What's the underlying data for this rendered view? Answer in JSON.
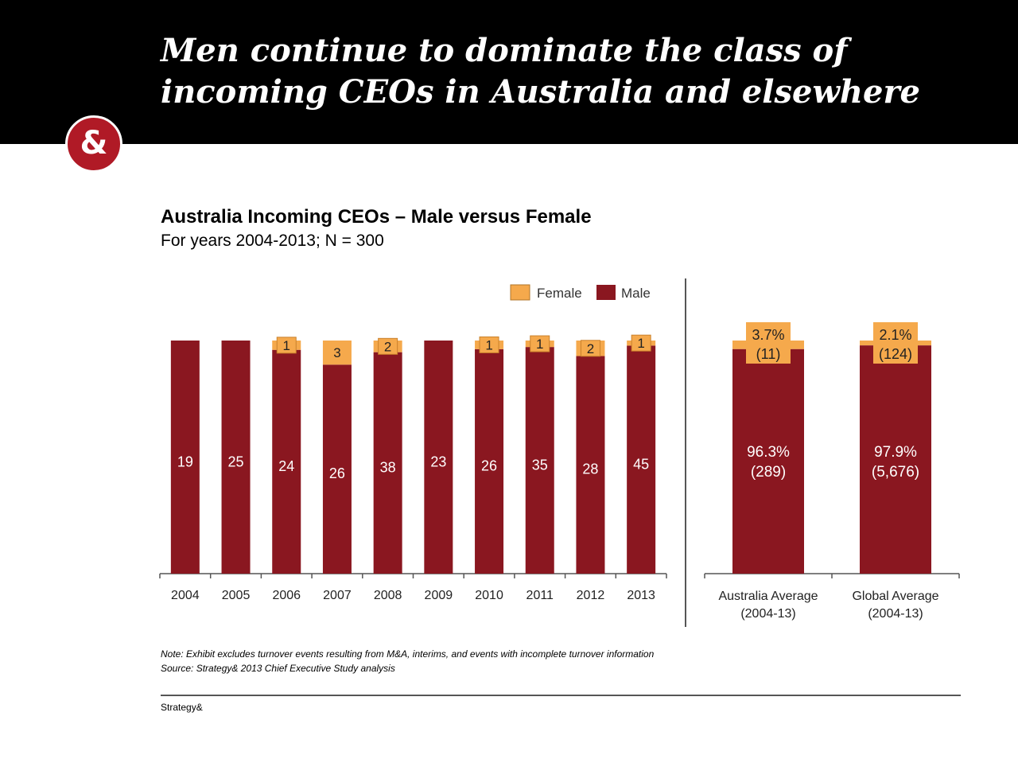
{
  "header": {
    "headline_line1": "Men continue to dominate the class of",
    "headline_line2": "incoming CEOs in Australia and elsewhere",
    "logo_glyph": "&",
    "background": "#000000"
  },
  "chart_data": [
    {
      "type": "bar",
      "stacked": true,
      "title": "Australia Incoming CEOs – Male versus Female",
      "subtitle": "For years 2004-2013; N = 300",
      "categories": [
        "2004",
        "2005",
        "2006",
        "2007",
        "2008",
        "2009",
        "2010",
        "2011",
        "2012",
        "2013"
      ],
      "series": [
        {
          "name": "Male",
          "color": "#8a1720",
          "values": [
            19,
            25,
            24,
            26,
            38,
            23,
            26,
            35,
            28,
            45
          ],
          "labels": [
            "19",
            "25",
            "24",
            "26",
            "38",
            "23",
            "26",
            "35",
            "28",
            "45"
          ]
        },
        {
          "name": "Female",
          "color": "#f5a94c",
          "values": [
            0,
            0,
            1,
            3,
            2,
            0,
            1,
            1,
            2,
            1
          ],
          "labels": [
            "",
            "",
            "1",
            "3",
            "2",
            "",
            "1",
            "1",
            "2",
            "1"
          ]
        }
      ],
      "normalized": true,
      "legend": {
        "placement": "top-right",
        "entries": [
          "Female",
          "Male"
        ]
      }
    },
    {
      "type": "bar",
      "stacked": true,
      "categories": [
        "Australia Average (2004-13)",
        "Global Average (2004-13)"
      ],
      "category_lines": [
        [
          "Australia Average",
          "(2004-13)"
        ],
        [
          "Global Average",
          "(2004-13)"
        ]
      ],
      "series": [
        {
          "name": "Male",
          "color": "#8a1720",
          "values": [
            96.3,
            97.9
          ],
          "labels": [
            [
              "96.3%",
              "(289)"
            ],
            [
              "97.9%",
              "(5,676)"
            ]
          ]
        },
        {
          "name": "Female",
          "color": "#f5a94c",
          "values": [
            3.7,
            2.1
          ],
          "labels": [
            [
              "3.7%",
              "(11)"
            ],
            [
              "2.1%",
              "(124)"
            ]
          ]
        }
      ],
      "unit": "%"
    }
  ],
  "footnote": {
    "note": "Note: Exhibit excludes turnover events resulting from M&A, interims, and events with incomplete turnover information",
    "source": "Source: Strategy& 2013 Chief Executive Study analysis"
  },
  "footer": {
    "brand": "Strategy&"
  },
  "colors": {
    "accent": "#b01a26",
    "male": "#8a1720",
    "female": "#f5a94c"
  }
}
